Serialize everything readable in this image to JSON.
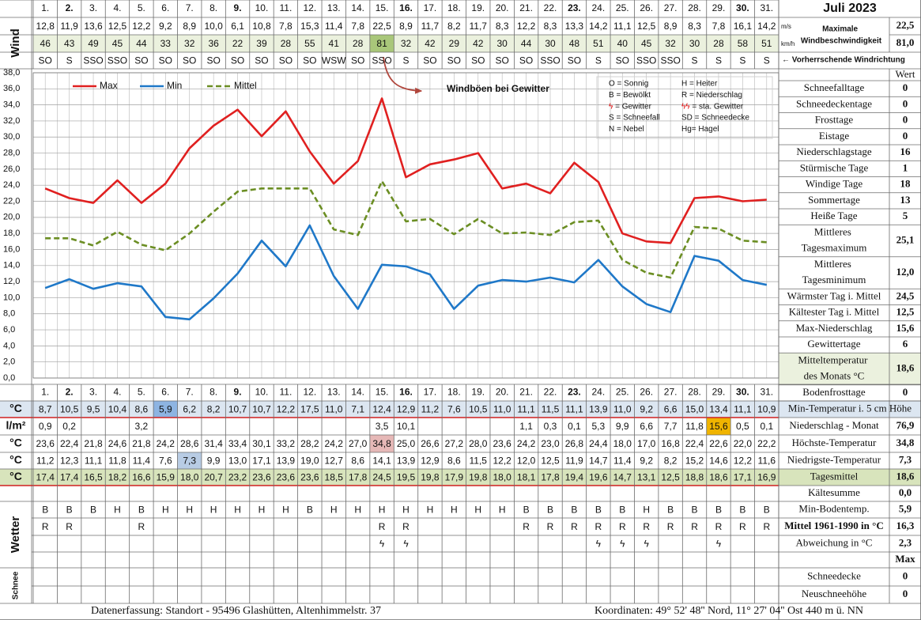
{
  "title": "Juli 2023",
  "chart_data": {
    "type": "line",
    "categories": [
      "1.",
      "2.",
      "3.",
      "4.",
      "5.",
      "6.",
      "7.",
      "8.",
      "9.",
      "10.",
      "11.",
      "12.",
      "13.",
      "14.",
      "15.",
      "16.",
      "17.",
      "18.",
      "19.",
      "20.",
      "21.",
      "22.",
      "23.",
      "24.",
      "25.",
      "26.",
      "27.",
      "28.",
      "29.",
      "30.",
      "31."
    ],
    "category_colors": [
      "#000000",
      "#e00000",
      "#000000",
      "#000000",
      "#000000",
      "#000000",
      "#000000",
      "#000000",
      "#e00000",
      "#000000",
      "#000000",
      "#000000",
      "#000000",
      "#000000",
      "#000000",
      "#e00000",
      "#000000",
      "#000000",
      "#000000",
      "#000000",
      "#000000",
      "#000000",
      "#e00000",
      "#000000",
      "#000000",
      "#000000",
      "#000000",
      "#000000",
      "#000000",
      "#e00000",
      "#000000"
    ],
    "ylim": [
      0,
      38
    ],
    "yticks": [
      {
        "value": 0,
        "label": "0,0"
      },
      {
        "value": 2,
        "label": "2,0"
      },
      {
        "value": 4,
        "label": "4,0"
      },
      {
        "value": 6,
        "label": "6,0"
      },
      {
        "value": 8,
        "label": "8,0"
      },
      {
        "value": 10,
        "label": "10,0"
      },
      {
        "value": 12,
        "label": "12,0"
      },
      {
        "value": 14,
        "label": "14,0"
      },
      {
        "value": 16,
        "label": "16,0"
      },
      {
        "value": 18,
        "label": "18,0"
      },
      {
        "value": 20,
        "label": "20,0"
      },
      {
        "value": 22,
        "label": "22,0"
      },
      {
        "value": 24,
        "label": "24,0"
      },
      {
        "value": 26,
        "label": "26,0"
      },
      {
        "value": 28,
        "label": "28,0"
      },
      {
        "value": 30,
        "label": "30,0"
      },
      {
        "value": 32,
        "label": "32,0"
      },
      {
        "value": 34,
        "label": "34,0"
      },
      {
        "value": 36,
        "label": "36,0"
      },
      {
        "value": 38,
        "label": "38,0"
      }
    ],
    "grid": true,
    "annotation": "Windböen bei Gewitter",
    "symbol_legend": [
      "O = Sonnig",
      "H = Heiter",
      "B = Bewölkt",
      "R = Niederschlag",
      "ϟ = Gewitter",
      "ϟϟ = sta. Gewitter",
      "S = Schneefall",
      "SD = Schneedecke",
      "N = Nebel",
      "Hg= Hagel"
    ],
    "series": [
      {
        "name": "Max",
        "color": "#e02020",
        "line_style": "solid",
        "values": [
          23.6,
          22.4,
          21.8,
          24.6,
          21.8,
          24.2,
          28.6,
          31.4,
          33.4,
          30.1,
          33.2,
          28.2,
          24.2,
          27.0,
          34.8,
          25.0,
          26.6,
          27.2,
          28.0,
          23.6,
          24.2,
          23.0,
          26.8,
          24.4,
          18.0,
          17.0,
          16.8,
          22.4,
          22.6,
          22.0,
          22.2
        ],
        "value_labels": [
          "23,6",
          "22,4",
          "21,8",
          "24,6",
          "21,8",
          "24,2",
          "28,6",
          "31,4",
          "33,4",
          "30,1",
          "33,2",
          "28,2",
          "24,2",
          "27,0",
          "34,8",
          "25,0",
          "26,6",
          "27,2",
          "28,0",
          "23,6",
          "24,2",
          "23,0",
          "26,8",
          "24,4",
          "18,0",
          "17,0",
          "16,8",
          "22,4",
          "22,6",
          "22,0",
          "22,2"
        ],
        "row_label": "°C",
        "summary_label": "Höchste-Temperatur",
        "summary_value": "34,8",
        "highlight": "max",
        "highlight_color": "#e6b8b7"
      },
      {
        "name": "Min",
        "color": "#1f78c8",
        "line_style": "solid",
        "values": [
          11.2,
          12.3,
          11.1,
          11.8,
          11.4,
          7.6,
          7.3,
          9.9,
          13.0,
          17.1,
          13.9,
          19.0,
          12.7,
          8.6,
          14.1,
          13.9,
          12.9,
          8.6,
          11.5,
          12.2,
          12.0,
          12.5,
          11.9,
          14.7,
          11.4,
          9.2,
          8.2,
          15.2,
          14.6,
          12.2,
          11.6
        ],
        "value_labels": [
          "11,2",
          "12,3",
          "11,1",
          "11,8",
          "11,4",
          "7,6",
          "7,3",
          "9,9",
          "13,0",
          "17,1",
          "13,9",
          "19,0",
          "12,7",
          "8,6",
          "14,1",
          "13,9",
          "12,9",
          "8,6",
          "11,5",
          "12,2",
          "12,0",
          "12,5",
          "11,9",
          "14,7",
          "11,4",
          "9,2",
          "8,2",
          "15,2",
          "14,6",
          "12,2",
          "11,6"
        ],
        "row_label": "°C",
        "summary_label": "Niedrigste-Temperatur",
        "summary_value": "7,3",
        "highlight": "min",
        "highlight_color": "#b8cce4"
      },
      {
        "name": "Mittel",
        "color": "#6b8e23",
        "line_style": "dashed",
        "values": [
          17.4,
          17.4,
          16.5,
          18.2,
          16.6,
          15.9,
          18.0,
          20.7,
          23.2,
          23.6,
          23.6,
          23.6,
          18.5,
          17.8,
          24.5,
          19.5,
          19.8,
          17.9,
          19.8,
          18.0,
          18.1,
          17.8,
          19.4,
          19.6,
          14.7,
          13.1,
          12.5,
          18.8,
          18.6,
          17.1,
          16.9
        ],
        "value_labels": [
          "17,4",
          "17,4",
          "16,5",
          "18,2",
          "16,6",
          "15,9",
          "18,0",
          "20,7",
          "23,2",
          "23,6",
          "23,6",
          "23,6",
          "18,5",
          "17,8",
          "24,5",
          "19,5",
          "19,8",
          "17,9",
          "19,8",
          "18,0",
          "18,1",
          "17,8",
          "19,4",
          "19,6",
          "14,7",
          "13,1",
          "12,5",
          "18,8",
          "18,6",
          "17,1",
          "16,9"
        ],
        "row_label": "°C",
        "summary_label": "Tagesmittel",
        "summary_value": "18,6",
        "row_bg": "#d8e4bc"
      }
    ]
  },
  "wind": {
    "label": "Wind",
    "unit_ms": "m/s",
    "unit_kmh": "km/h",
    "ms": [
      "12,8",
      "11,9",
      "13,6",
      "12,5",
      "12,2",
      "9,2",
      "8,9",
      "10,0",
      "6,1",
      "10,8",
      "7,8",
      "15,3",
      "11,4",
      "7,8",
      "22,5",
      "8,9",
      "11,7",
      "8,2",
      "11,7",
      "8,3",
      "12,2",
      "8,3",
      "13,3",
      "14,2",
      "11,1",
      "12,5",
      "8,9",
      "8,3",
      "7,8",
      "16,1",
      "14,2"
    ],
    "kmh": [
      46,
      43,
      49,
      45,
      44,
      33,
      32,
      36,
      22,
      39,
      28,
      55,
      41,
      28,
      81,
      32,
      42,
      29,
      42,
      30,
      44,
      30,
      48,
      51,
      40,
      45,
      32,
      30,
      28,
      58,
      51
    ],
    "kmh_bg": "#ebf1de",
    "kmh_highlight": "max",
    "kmh_highlight_color": "#a9c77a",
    "direction": [
      "SO",
      "S",
      "SSO",
      "SSO",
      "SO",
      "SO",
      "SO",
      "SO",
      "SO",
      "SO",
      "SO",
      "SO",
      "WSW",
      "SO",
      "SSO",
      "S",
      "SO",
      "SO",
      "SO",
      "SO",
      "SO",
      "SSO",
      "SO",
      "S",
      "SO",
      "SSO",
      "SSO",
      "S",
      "S",
      "S",
      "S"
    ],
    "max_label": "Maximale Windbeschwindigkeit",
    "max_ms": "22,5",
    "max_kmh": "81,0",
    "direction_note": "← Vorherrschende Windrichtung"
  },
  "stats": {
    "header": "Wert",
    "rows": [
      {
        "label": "Schneefalltage",
        "value": 0
      },
      {
        "label": "Schneedeckentage",
        "value": 0
      },
      {
        "label": "Frosttage",
        "value": 0
      },
      {
        "label": "Eistage",
        "value": 0
      },
      {
        "label": "Niederschlagstage",
        "value": 16
      },
      {
        "label": "Stürmische Tage",
        "value": 1
      },
      {
        "label": "Windige Tage",
        "value": 18
      },
      {
        "label": "Sommertage",
        "value": 13
      },
      {
        "label": "Heiße Tage",
        "value": 5
      },
      {
        "label": "Mittleres Tagesmaximum",
        "value": "25,1"
      },
      {
        "label": "Mittleres Tagesminimum",
        "value": "12,0"
      },
      {
        "label": "Wärmster Tag i. Mittel",
        "value": "24,5"
      },
      {
        "label": "Kältester Tag i. Mittel",
        "value": "12,5"
      },
      {
        "label": "Max-Niederschlag",
        "value": "15,6"
      },
      {
        "label": "Gewittertage",
        "value": 6
      },
      {
        "label": "Mitteltemperatur des Monats °C",
        "value": "18,6",
        "bg": "#ebf1de"
      },
      {
        "label": "Bodenfrosttage",
        "value": 0
      }
    ]
  },
  "table": {
    "upper": [
      {
        "label": "°C",
        "cells": [
          "8,7",
          "10,5",
          "9,5",
          "10,4",
          "8,6",
          "5,9",
          "6,2",
          "8,2",
          "10,7",
          "10,7",
          "12,2",
          "17,5",
          "11,0",
          "7,1",
          "12,4",
          "12,9",
          "11,2",
          "7,6",
          "10,5",
          "11,0",
          "11,1",
          "11,5",
          "11,1",
          "13,9",
          "11,0",
          "9,2",
          "6,6",
          "15,0",
          "13,4",
          "11,1",
          "10,9"
        ],
        "side_label": "Min-Temperatur i. 5 cm Höhe",
        "bg": "#dce6f1",
        "highlight": "min",
        "highlight_color": "#8db4e2"
      },
      {
        "label": "l/m²",
        "cells": [
          "0,9",
          "0,2",
          null,
          null,
          "3,2",
          null,
          null,
          null,
          null,
          null,
          null,
          null,
          null,
          null,
          "3,5",
          "10,1",
          null,
          null,
          null,
          null,
          "1,1",
          "0,3",
          "0,1",
          "5,3",
          "9,9",
          "6,6",
          "7,7",
          "11,8",
          "15,6",
          "0,5",
          "0,1"
        ],
        "side_label": "Niederschlag - Monat",
        "side_value": "76,9",
        "highlight": "max",
        "highlight_color": "#f0b400"
      }
    ],
    "weather_label": "Wetter",
    "snow_label": "Schnee",
    "lower": [
      {
        "side_label": "Kältesumme",
        "side_value": "0,0"
      },
      {
        "cells": [
          "B",
          "B",
          "B",
          "H",
          "B",
          "H",
          "H",
          "H",
          "H",
          "H",
          "H",
          "B",
          "H",
          "H",
          "H",
          "H",
          "H",
          "H",
          "H",
          "H",
          "B",
          "B",
          "B",
          "B",
          "B",
          "H",
          "B",
          "B",
          "B",
          "B",
          "B"
        ],
        "side_label": "Min-Bodentemp.",
        "side_value": "5,9"
      },
      {
        "cells": [
          "R",
          "R",
          null,
          null,
          "R",
          null,
          null,
          null,
          null,
          null,
          null,
          null,
          null,
          null,
          "R",
          "R",
          null,
          null,
          null,
          null,
          "R",
          "R",
          "R",
          "R",
          "R",
          "R",
          "R",
          "R",
          "R",
          "R",
          "R"
        ],
        "side_label": "Mittel 1961-1990 in °C",
        "side_value": "16,3",
        "side_bold": true
      },
      {
        "cells": [
          null,
          null,
          null,
          null,
          null,
          null,
          null,
          null,
          null,
          null,
          null,
          null,
          null,
          null,
          "ϟ",
          "ϟ",
          null,
          null,
          null,
          null,
          null,
          null,
          null,
          "ϟ",
          "ϟ",
          "ϟ",
          null,
          null,
          "ϟ",
          null,
          null
        ],
        "cell_color": "#e00000",
        "side_label": "Abweichung in °C",
        "side_value": "2,3",
        "value_color": "#e00000"
      },
      {
        "side_value": "Max"
      },
      {
        "side_label": "Schneedecke",
        "side_value": 0
      },
      {
        "side_label": "Neuschneehöhe",
        "side_value": 0
      }
    ]
  },
  "footer": {
    "left": "Datenerfassung:  Standort -  95496  Glashütten, Altenhimmelstr. 37",
    "right": "Koordinaten:  49° 52' 48'' Nord,   11° 27' 04'' Ost   440 m ü. NN"
  }
}
